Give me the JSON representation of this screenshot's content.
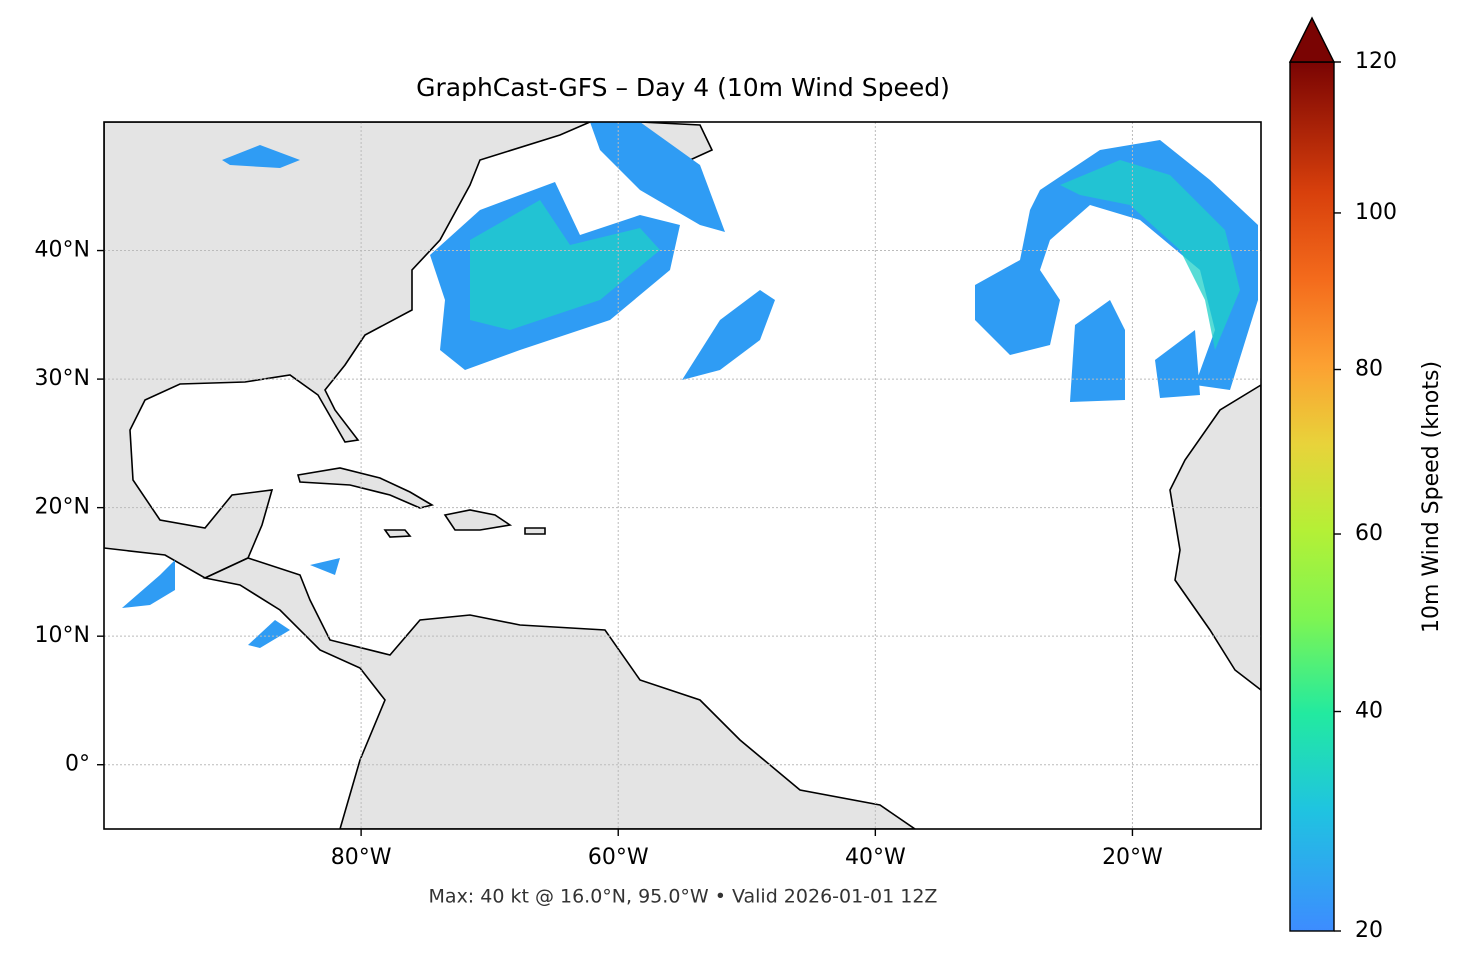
{
  "map": {
    "title": "GraphCast-GFS – Day 4 (10m Wind Speed)",
    "note": "Max: 40 kt @ 16.0°N, 95.0°W • Valid 2026-01-01 12Z",
    "xlim": [
      -100,
      -10
    ],
    "ylim": [
      -5,
      50
    ],
    "xticks": [
      {
        "value": -80,
        "label": "80°W"
      },
      {
        "value": -60,
        "label": "60°W"
      },
      {
        "value": -40,
        "label": "40°W"
      },
      {
        "value": -20,
        "label": "20°W"
      }
    ],
    "yticks": [
      {
        "value": 0,
        "label": "0°"
      },
      {
        "value": 10,
        "label": "10°N"
      },
      {
        "value": 20,
        "label": "20°N"
      },
      {
        "value": 30,
        "label": "30°N"
      },
      {
        "value": 40,
        "label": "40°N"
      }
    ],
    "grid": true,
    "colorbar": {
      "label": "10m Wind Speed (knots)",
      "lim": [
        20,
        120
      ],
      "ticks": [
        20,
        40,
        60,
        80,
        100,
        120
      ],
      "extend": "max"
    }
  }
}
